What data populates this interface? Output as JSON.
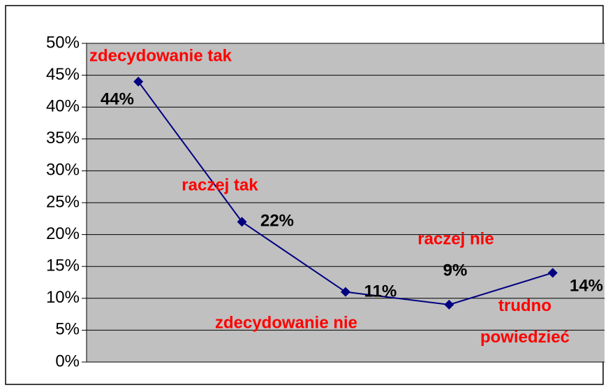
{
  "chart_data": {
    "type": "line",
    "categories": [
      "zdecydowanie tak",
      "raczej tak",
      "zdecydowanie nie",
      "raczej nie",
      "trudno powiedzieć"
    ],
    "series": [
      {
        "color": "#000080",
        "values": [
          44,
          22,
          11,
          9,
          14
        ],
        "value_labels": [
          "44%",
          "22%",
          "11%",
          "9%",
          "14%"
        ]
      }
    ],
    "ylim": [
      0,
      50
    ],
    "yticks": [
      {
        "value": 0,
        "label": "0%"
      },
      {
        "value": 5,
        "label": "5%"
      },
      {
        "value": 10,
        "label": "10%"
      },
      {
        "value": 15,
        "label": "15%"
      },
      {
        "value": 20,
        "label": "20%"
      },
      {
        "value": 25,
        "label": "25%"
      },
      {
        "value": 30,
        "label": "30%"
      },
      {
        "value": 35,
        "label": "35%"
      },
      {
        "value": 40,
        "label": "40%"
      },
      {
        "value": 45,
        "label": "45%"
      },
      {
        "value": 50,
        "label": "50%"
      }
    ],
    "grid": true,
    "category_label_color": "#ff0000"
  }
}
